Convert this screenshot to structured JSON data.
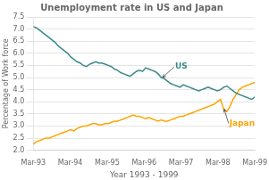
{
  "chart_data": {
    "type": "line",
    "title": "Unemployment rate in US and Japan",
    "xlabel": "Year 1993 - 1999",
    "ylabel": "Percentage of Work force",
    "x": [
      0,
      1.0141,
      2.0282,
      3.0423,
      4.0563,
      5.0704,
      6.0845,
      7.0986,
      8.1127,
      9.1268,
      10.1408,
      11.1549,
      12.169,
      13.1831,
      14.1972,
      15.2113,
      16.2254,
      17.2394,
      18.2535,
      19.2676,
      20.2817,
      21.2958,
      22.3099,
      23.3239,
      24.338,
      25.3521,
      26.3662,
      27.3803,
      28.3944,
      29.4085,
      30.4225,
      31.4366,
      32.4507,
      33.4648,
      34.4789,
      35.493,
      36.507,
      37.5211,
      38.5352,
      39.5493,
      40.5634,
      41.5775,
      42.5915,
      43.6056,
      44.6197,
      45.6338,
      46.6479,
      47.662,
      48.6761,
      49.6901,
      50.7042,
      51.7183,
      52.7324,
      53.7465,
      54.7606,
      55.7746,
      56.7887,
      57.8028,
      58.8169,
      59.831,
      60.8451,
      61.8592,
      62.8732,
      63.8873,
      64.9014,
      65.9155,
      66.9296,
      67.9437,
      68.9577,
      69.9718,
      70.9859,
      72
    ],
    "series": [
      {
        "name": "US",
        "color": "#3A8A8A",
        "values": [
          7.1,
          7.05,
          6.95,
          6.85,
          6.75,
          6.65,
          6.55,
          6.45,
          6.3,
          6.2,
          6.1,
          6.0,
          5.85,
          5.75,
          5.65,
          5.6,
          5.5,
          5.45,
          5.55,
          5.6,
          5.65,
          5.6,
          5.6,
          5.55,
          5.5,
          5.45,
          5.35,
          5.3,
          5.2,
          5.15,
          5.1,
          5.05,
          5.15,
          5.25,
          5.3,
          5.25,
          5.4,
          5.35,
          5.3,
          5.25,
          5.15,
          5.0,
          4.95,
          4.85,
          4.75,
          4.7,
          4.65,
          4.6,
          4.7,
          4.65,
          4.6,
          4.55,
          4.5,
          4.45,
          4.5,
          4.55,
          4.6,
          4.55,
          4.5,
          4.45,
          4.5,
          4.6,
          4.65,
          4.55,
          4.45,
          4.35,
          4.3,
          4.25,
          4.2,
          4.15,
          4.1,
          4.2
        ]
      },
      {
        "name": "Japan",
        "color": "#FFA500",
        "values": [
          2.25,
          2.35,
          2.4,
          2.45,
          2.5,
          2.5,
          2.55,
          2.6,
          2.65,
          2.7,
          2.75,
          2.8,
          2.85,
          2.8,
          2.9,
          2.95,
          3.0,
          3.0,
          3.05,
          3.1,
          3.1,
          3.05,
          3.05,
          3.1,
          3.1,
          3.15,
          3.2,
          3.2,
          3.25,
          3.3,
          3.35,
          3.4,
          3.45,
          3.4,
          3.4,
          3.35,
          3.3,
          3.35,
          3.3,
          3.25,
          3.2,
          3.25,
          3.2,
          3.2,
          3.25,
          3.3,
          3.35,
          3.4,
          3.4,
          3.45,
          3.5,
          3.55,
          3.6,
          3.65,
          3.7,
          3.75,
          3.8,
          3.85,
          3.9,
          4.0,
          4.1,
          3.7,
          3.6,
          3.8,
          4.1,
          4.3,
          4.5,
          4.6,
          4.65,
          4.7,
          4.75,
          4.8
        ]
      }
    ],
    "xlim": [
      0,
      72
    ],
    "xticks": [
      {
        "value": 0,
        "label": "Mar-93"
      },
      {
        "value": 12,
        "label": "Mar-94"
      },
      {
        "value": 24,
        "label": "Mar-95"
      },
      {
        "value": 36,
        "label": "Mar-96"
      },
      {
        "value": 48,
        "label": "Mar-97"
      },
      {
        "value": 60,
        "label": "Mar-98"
      },
      {
        "value": 72,
        "label": "Mar-99"
      }
    ],
    "ylim": [
      2.0,
      7.5
    ],
    "yticks": [
      {
        "value": 2,
        "label": "2.0"
      },
      2.5,
      {
        "value": 3,
        "label": "3.0"
      },
      3.5,
      {
        "value": 4,
        "label": "4.0"
      },
      4.5,
      {
        "value": 5,
        "label": "5.0"
      },
      5.5,
      {
        "value": 6,
        "label": "6.0"
      },
      6.5,
      {
        "value": 7,
        "label": "7.0"
      },
      7.5
    ],
    "grid": "y",
    "annotations": [
      {
        "text": "US",
        "x": 42,
        "y": 5.0,
        "color": "#3A8A8A"
      },
      {
        "text": "Japan",
        "x": 62,
        "y": 3.7,
        "color": "#FFA500"
      }
    ]
  }
}
